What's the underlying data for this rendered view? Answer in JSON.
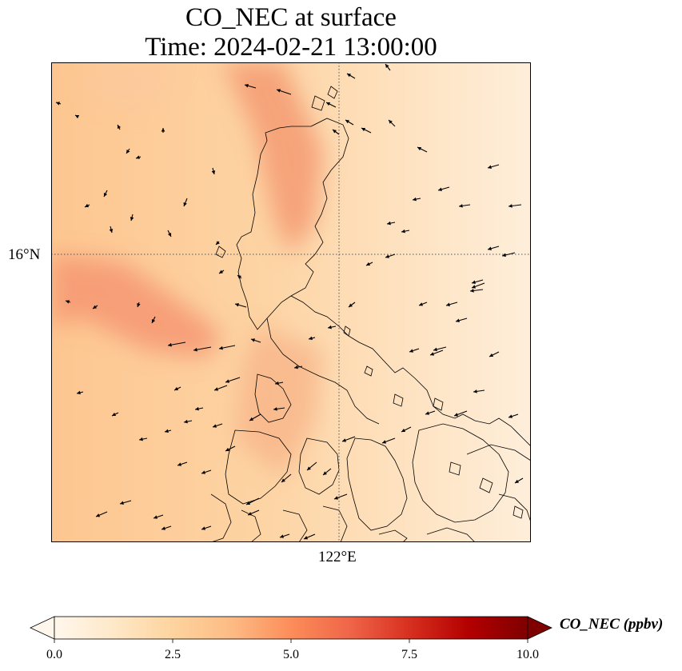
{
  "figure": {
    "title_line1": "CO_NEC at surface",
    "title_line2": "Time: 2024-02-21 13:00:00",
    "lat_tick": "16°N",
    "lon_tick": "122°E"
  },
  "map": {
    "projection": "PlateCarree",
    "gridlines": "dotted",
    "field": "CO_NEC",
    "level": "surface",
    "overlays": [
      "coastlines",
      "wind-vectors"
    ],
    "colormap": "OrRd",
    "colors": {
      "background_low": "#fff7ec",
      "mid": "#fdd49e",
      "high": "#fc8d59",
      "max": "#7f0000",
      "coastline": "#000000",
      "gridline": "#555555"
    }
  },
  "colorbar": {
    "label": "CO_NEC (ppbv)",
    "min": 0.0,
    "max": 10.0,
    "extend": "both",
    "ticks": [
      "0.0",
      "2.5",
      "5.0",
      "7.5",
      "10.0"
    ],
    "stops": [
      "#fff7ec",
      "#fee8c8",
      "#fdd49e",
      "#fdbb84",
      "#fc8d59",
      "#ef6548",
      "#d7301f",
      "#b30000",
      "#7f0000"
    ]
  }
}
